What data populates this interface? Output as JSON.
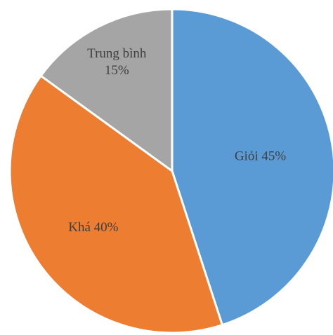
{
  "chart_data": {
    "type": "pie",
    "slices": [
      {
        "label_lines": [
          "Giỏi 45%"
        ],
        "value": 45,
        "color": "#5b9bd5",
        "name": "slice-gioi"
      },
      {
        "label_lines": [
          "Khá 40%"
        ],
        "value": 40,
        "color": "#ed7d31",
        "name": "slice-kha"
      },
      {
        "label_lines": [
          "Trung bình",
          "15%"
        ],
        "value": 15,
        "color": "#a5a5a5",
        "name": "slice-trung-binh"
      }
    ]
  }
}
